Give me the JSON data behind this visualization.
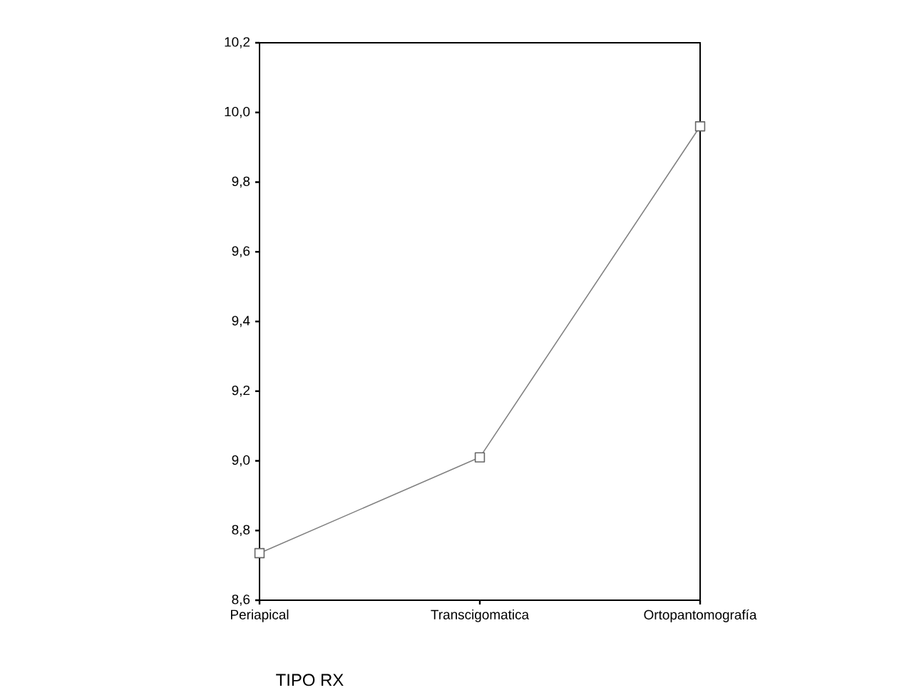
{
  "chart_data": {
    "type": "line",
    "xlabel": "TIPO RX",
    "categories": [
      "Periapical",
      "Transcigomatica",
      "Ortopantomografía"
    ],
    "values": [
      8.735,
      9.01,
      9.96
    ],
    "color": "#808080",
    "marker": "square",
    "line_style": "solid",
    "ylim": [
      8.6,
      10.2
    ],
    "yticks": [
      {
        "value": 8.6,
        "label": "8,6"
      },
      {
        "value": 8.8,
        "label": "8,8"
      },
      {
        "value": 9.0,
        "label": "9,0"
      },
      {
        "value": 9.2,
        "label": "9,2"
      },
      {
        "value": 9.4,
        "label": "9,4"
      },
      {
        "value": 9.6,
        "label": "9,6"
      },
      {
        "value": 9.8,
        "label": "9,8"
      },
      {
        "value": 10.0,
        "label": "10,0"
      },
      {
        "value": 10.2,
        "label": "10,2"
      }
    ]
  }
}
